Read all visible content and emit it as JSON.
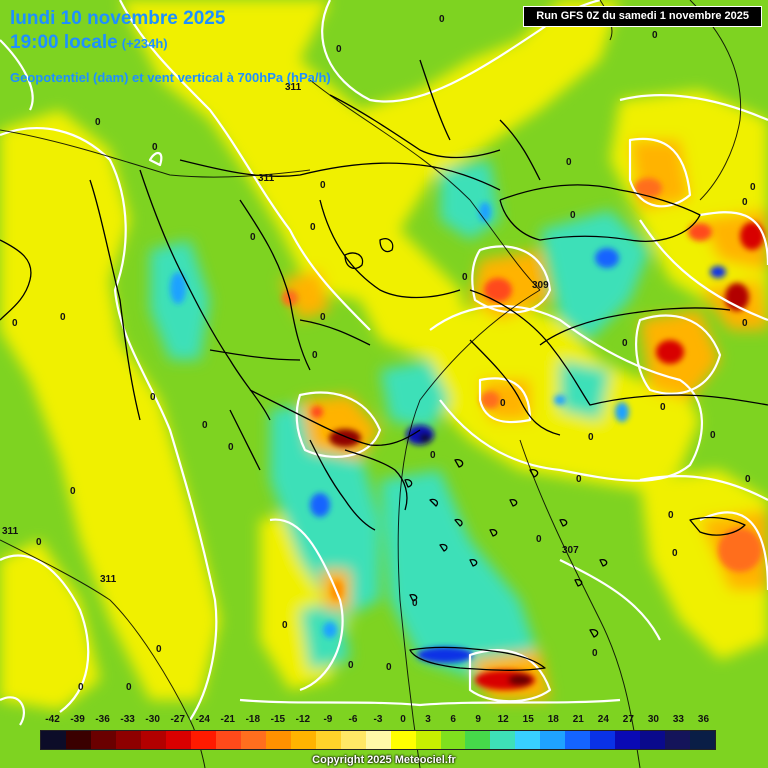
{
  "header": {
    "date_line": "lundi 10 novembre 2025",
    "time_line": "19:00 locale",
    "lead_time": "(+234h)",
    "parameter": "Geopotentiel (dam) et vent vertical à 700hPa (hPa/h)"
  },
  "run_label": "Run GFS 0Z du samedi 1 novembre 2025",
  "legend": {
    "values": [
      "-42",
      "-39",
      "-36",
      "-33",
      "-30",
      "-27",
      "-24",
      "-21",
      "-18",
      "-15",
      "-12",
      "-9",
      "-6",
      "-3",
      "0",
      "3",
      "6",
      "9",
      "12",
      "15",
      "18",
      "21",
      "24",
      "27",
      "30",
      "33",
      "36"
    ],
    "colors": [
      "#0c0c28",
      "#3a0000",
      "#6a0000",
      "#8e0000",
      "#b20000",
      "#d80000",
      "#ff1a00",
      "#ff4a1a",
      "#ff6e1e",
      "#ff9100",
      "#ffb300",
      "#ffd22a",
      "#ffe866",
      "#fff9a8",
      "#ffff00",
      "#c8f000",
      "#7fe01e",
      "#46d84a",
      "#3ee0b8",
      "#38d0ff",
      "#1fa2ff",
      "#1464ff",
      "#0a32e6",
      "#0a0ab4",
      "#0a0a8c",
      "#14145a",
      "#0a1e46"
    ]
  },
  "contour_labels": [
    {
      "text": "0"
    },
    {
      "text": "0"
    },
    {
      "text": "0"
    },
    {
      "text": "0"
    },
    {
      "text": "0"
    },
    {
      "text": "0"
    },
    {
      "text": "0"
    },
    {
      "text": "0"
    },
    {
      "text": "0"
    },
    {
      "text": "0"
    },
    {
      "text": "0"
    },
    {
      "text": "0"
    },
    {
      "text": "0"
    },
    {
      "text": "0"
    },
    {
      "text": "0"
    },
    {
      "text": "0"
    },
    {
      "text": "0"
    },
    {
      "text": "0"
    },
    {
      "text": "0"
    },
    {
      "text": "0"
    },
    {
      "text": "0"
    },
    {
      "text": "0"
    },
    {
      "text": "0"
    },
    {
      "text": "0"
    },
    {
      "text": "0"
    },
    {
      "text": "0"
    },
    {
      "text": "0"
    },
    {
      "text": "0"
    },
    {
      "text": "0"
    },
    {
      "text": "0"
    },
    {
      "text": "0"
    },
    {
      "text": "0"
    },
    {
      "text": "0"
    },
    {
      "text": "0"
    },
    {
      "text": "0"
    },
    {
      "text": "0"
    },
    {
      "text": "0"
    },
    {
      "text": "0"
    },
    {
      "text": "0"
    },
    {
      "text": "0"
    },
    {
      "text": "0"
    },
    {
      "text": "0"
    },
    {
      "text": "311"
    },
    {
      "text": "311"
    },
    {
      "text": "311"
    },
    {
      "text": "311"
    },
    {
      "text": "309"
    },
    {
      "text": "307"
    }
  ],
  "copyright": "Copyright 2025 Meteociel.fr"
}
